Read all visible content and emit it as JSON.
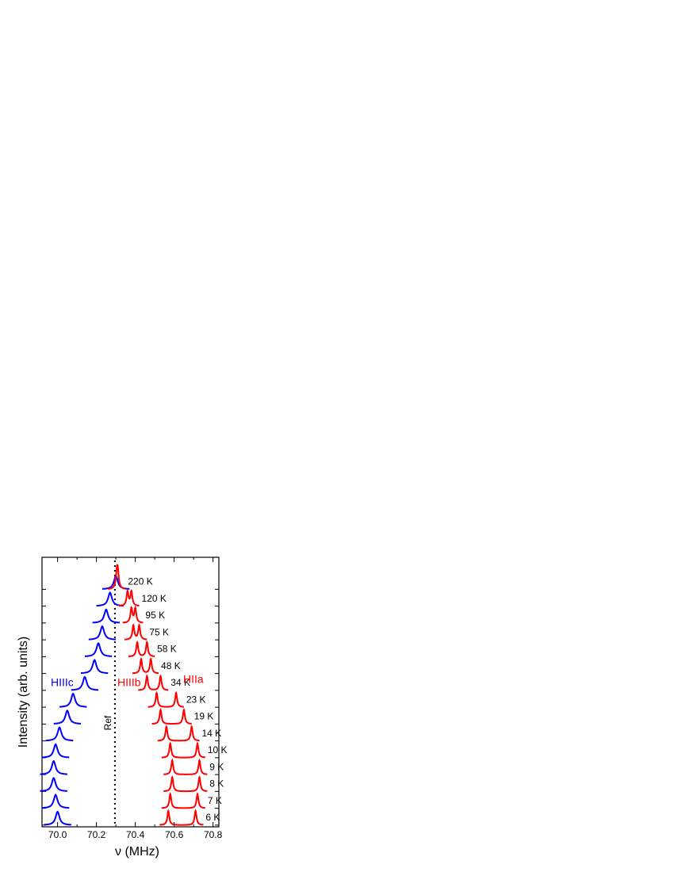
{
  "chart_data": {
    "type": "stacked-spectra",
    "x_label": "ν (MHz)",
    "y_label": "Intensity (arb. units)",
    "xlim": [
      69.92,
      70.83
    ],
    "xticks": [
      {
        "value": 70.0,
        "label": "70.0"
      },
      70.2,
      70.4,
      70.6,
      70.8
    ],
    "xminor": [
      70.1,
      70.3,
      70.5,
      70.7
    ],
    "ylim": [
      -0.1,
      15.9
    ],
    "ref_line": 70.295,
    "ref_label": "Ref",
    "components": [
      {
        "name": "HIIIc",
        "color": "#0000ff",
        "hwhm": 0.012,
        "height": 0.8
      },
      {
        "name": "HIIIb",
        "color": "#ff0000",
        "hwhm": 0.006,
        "height": 0.85
      },
      {
        "name": "HIIa",
        "color": "#ff0000",
        "hwhm": 0.006,
        "height": 0.85
      }
    ],
    "spectra": [
      {
        "label": "6 K",
        "offset": 0,
        "centers": [
          70.0,
          70.57,
          70.71
        ]
      },
      {
        "label": "7 K",
        "offset": 1,
        "centers": [
          69.99,
          70.58,
          70.72
        ]
      },
      {
        "label": "8 K",
        "offset": 2,
        "centers": [
          69.98,
          70.59,
          70.73
        ]
      },
      {
        "label": "9 K",
        "offset": 3,
        "centers": [
          69.98,
          70.59,
          70.73
        ]
      },
      {
        "label": "10 K",
        "offset": 4,
        "centers": [
          69.99,
          70.58,
          70.72
        ]
      },
      {
        "label": "14 K",
        "offset": 5,
        "centers": [
          70.01,
          70.56,
          70.69
        ]
      },
      {
        "label": "19 K",
        "offset": 6,
        "centers": [
          70.05,
          70.53,
          70.65
        ]
      },
      {
        "label": "23 K",
        "offset": 7,
        "centers": [
          70.08,
          70.51,
          70.61
        ]
      },
      {
        "label": "34 K",
        "offset": 8,
        "centers": [
          70.14,
          70.46,
          70.53
        ]
      },
      {
        "label": "48 K",
        "offset": 9,
        "centers": [
          70.19,
          70.43,
          70.48
        ]
      },
      {
        "label": "58 K",
        "offset": 10,
        "centers": [
          70.21,
          70.41,
          70.46
        ]
      },
      {
        "label": "75 K",
        "offset": 11,
        "centers": [
          70.23,
          70.39,
          70.42
        ]
      },
      {
        "label": "95 K",
        "offset": 12,
        "centers": [
          70.25,
          70.38,
          70.4
        ]
      },
      {
        "label": "120 K",
        "offset": 13,
        "centers": [
          70.27,
          70.36,
          70.38
        ]
      },
      {
        "label": "220 K",
        "offset": 14,
        "centers": [
          70.3,
          70.305,
          70.31
        ]
      }
    ]
  }
}
